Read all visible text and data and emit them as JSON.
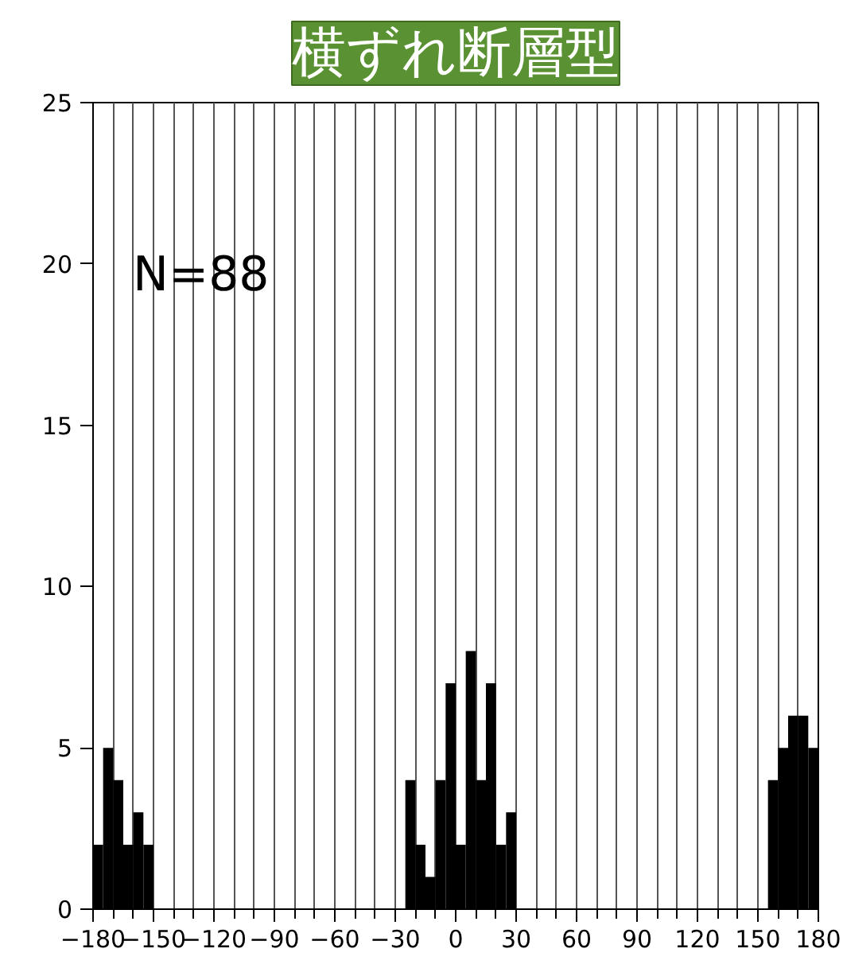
{
  "chart_data": {
    "type": "histogram",
    "title": "横ずれ断層型",
    "bins": [
      -180,
      -175,
      -170,
      -165,
      -160,
      -155,
      -150,
      -145,
      -140,
      -135,
      -130,
      -125,
      -120,
      -115,
      -110,
      -105,
      -100,
      -95,
      -90,
      -85,
      -80,
      -75,
      -70,
      -65,
      -60,
      -55,
      -50,
      -45,
      -40,
      -35,
      -30,
      -25,
      -20,
      -15,
      -10,
      -5,
      0,
      5,
      10,
      15,
      20,
      25,
      30,
      35,
      40,
      45,
      50,
      55,
      60,
      65,
      70,
      75,
      80,
      85,
      90,
      95,
      100,
      105,
      110,
      115,
      120,
      125,
      130,
      135,
      140,
      145,
      150,
      155,
      160,
      165,
      170,
      175,
      180
    ],
    "values": [
      2,
      5,
      4,
      2,
      3,
      2,
      0,
      0,
      0,
      0,
      0,
      0,
      0,
      0,
      0,
      0,
      0,
      0,
      0,
      0,
      0,
      0,
      0,
      0,
      0,
      0,
      0,
      0,
      0,
      0,
      0,
      4,
      2,
      1,
      4,
      7,
      2,
      8,
      4,
      7,
      2,
      3,
      0,
      0,
      0,
      0,
      0,
      0,
      0,
      0,
      0,
      0,
      0,
      0,
      0,
      0,
      0,
      0,
      0,
      0,
      0,
      0,
      0,
      0,
      0,
      0,
      0,
      4,
      5,
      6,
      6,
      5
    ],
    "color": "#000000",
    "xlim": [
      -180,
      180
    ],
    "ylim": [
      0,
      25
    ],
    "xticks": [
      {
        "value": -180,
        "label": "−180"
      },
      {
        "value": -170,
        "label": null
      },
      {
        "value": -160,
        "label": null
      },
      {
        "value": -150,
        "label": "−150"
      },
      {
        "value": -140,
        "label": null
      },
      {
        "value": -130,
        "label": null
      },
      {
        "value": -120,
        "label": "−120"
      },
      {
        "value": -110,
        "label": null
      },
      {
        "value": -100,
        "label": null
      },
      {
        "value": -90,
        "label": "−90"
      },
      {
        "value": -80,
        "label": null
      },
      {
        "value": -70,
        "label": null
      },
      {
        "value": -60,
        "label": "−60"
      },
      {
        "value": -50,
        "label": null
      },
      {
        "value": -40,
        "label": null
      },
      {
        "value": -30,
        "label": "−30"
      },
      {
        "value": -20,
        "label": null
      },
      {
        "value": -10,
        "label": null
      },
      0,
      {
        "value": 10,
        "label": null
      },
      {
        "value": 20,
        "label": null
      },
      30,
      {
        "value": 40,
        "label": null
      },
      {
        "value": 50,
        "label": null
      },
      60,
      {
        "value": 70,
        "label": null
      },
      {
        "value": 80,
        "label": null
      },
      90,
      {
        "value": 100,
        "label": null
      },
      {
        "value": 110,
        "label": null
      },
      120,
      {
        "value": 130,
        "label": null
      },
      {
        "value": 140,
        "label": null
      },
      150,
      {
        "value": 160,
        "label": null
      },
      {
        "value": 170,
        "label": null
      },
      180
    ],
    "yticks": [
      0,
      5,
      10,
      15,
      20,
      25
    ],
    "grid": "x",
    "annotations": [
      "N=88"
    ]
  }
}
